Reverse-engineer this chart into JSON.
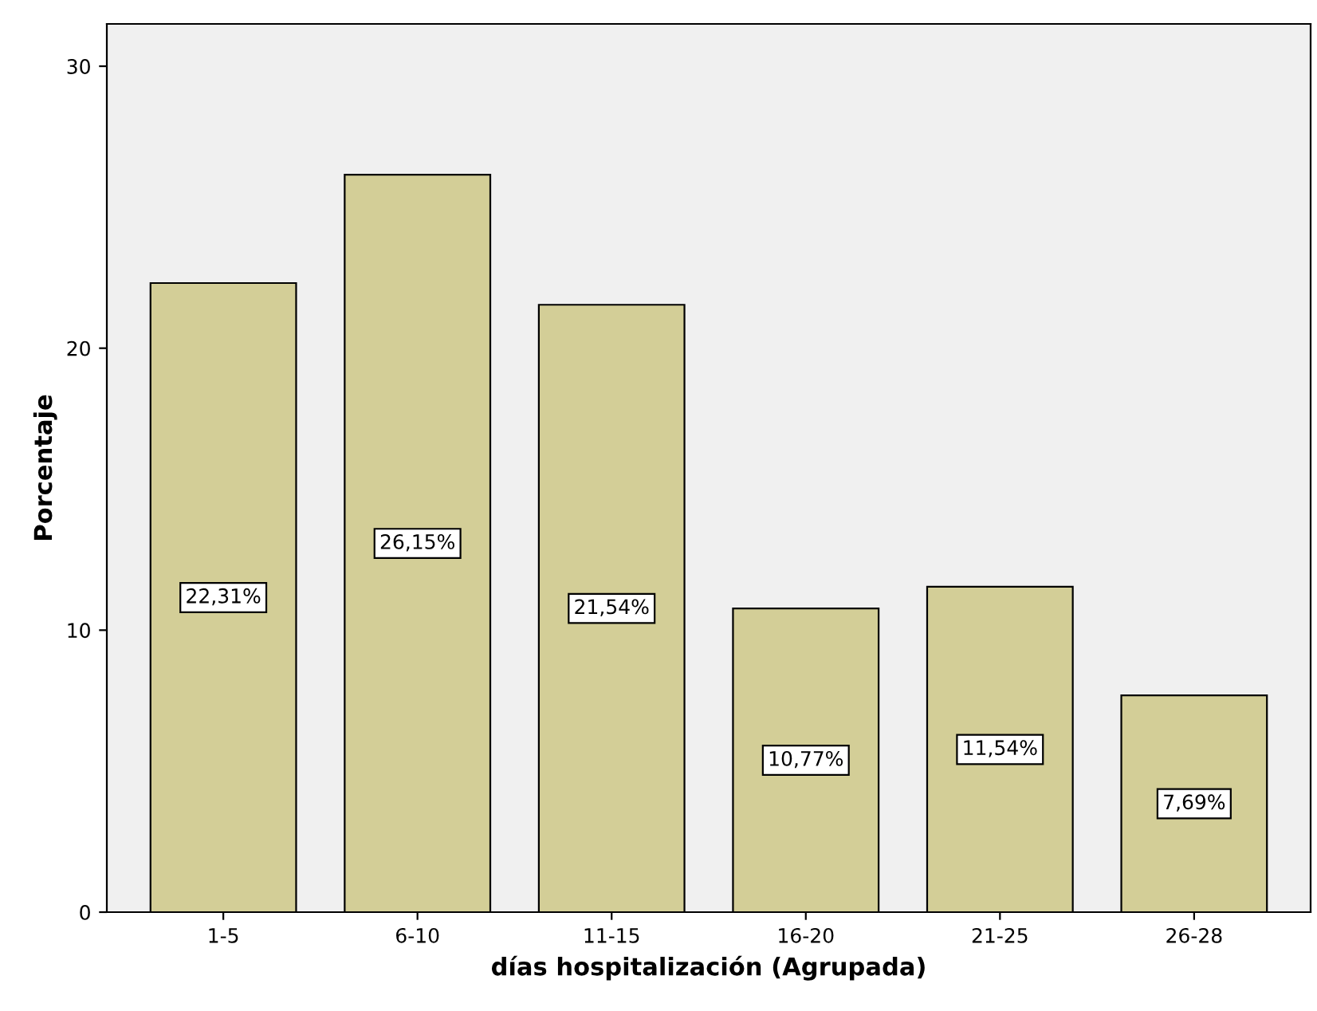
{
  "chart_data": {
    "type": "bar",
    "xlabel": "días hospitalización (Agrupada)",
    "ylabel": "Porcentaje",
    "categories": [
      "1-5",
      "6-10",
      "11-15",
      "16-20",
      "21-25",
      "26-28"
    ],
    "values": [
      22.31,
      26.15,
      21.54,
      10.77,
      11.54,
      7.69
    ],
    "value_labels": [
      "22,31%",
      "26,15%",
      "21,54%",
      "10,77%",
      "11,54%",
      "7,69%"
    ],
    "color": "#d3ce97",
    "ylim": [
      0,
      31.5
    ],
    "yticks": [
      0,
      10,
      20,
      30
    ],
    "grid": false,
    "legend": false
  }
}
